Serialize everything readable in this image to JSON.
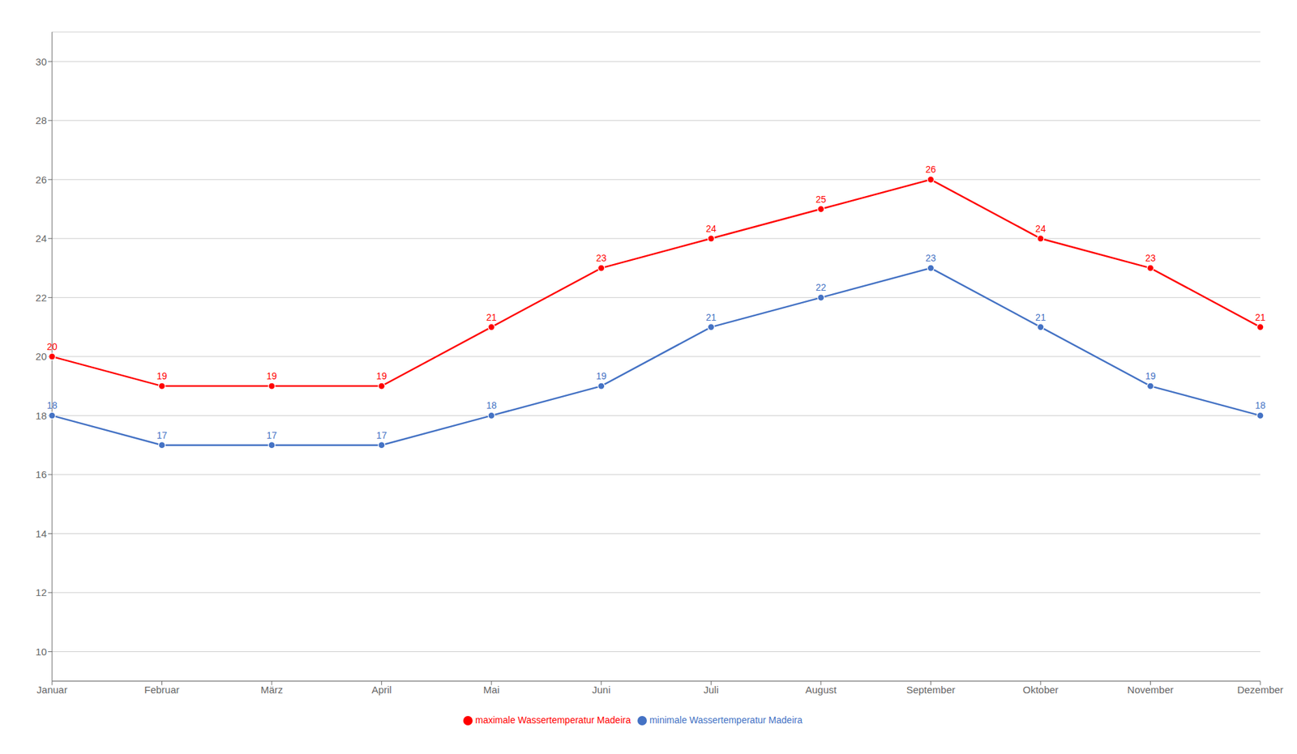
{
  "chart_data": {
    "type": "line",
    "categories": [
      "Januar",
      "Februar",
      "März",
      "April",
      "Mai",
      "Juni",
      "Juli",
      "August",
      "September",
      "Oktober",
      "November",
      "Dezember"
    ],
    "series": [
      {
        "name": "minimale Wassertemperatur Madeira",
        "color": "#4472C4",
        "values": [
          18,
          17,
          17,
          17,
          18,
          19,
          21,
          22,
          23,
          21,
          19,
          18
        ]
      },
      {
        "name": "maximale Wassertemperatur Madeira",
        "color": "#FF0000",
        "values": [
          20,
          19,
          19,
          19,
          21,
          23,
          24,
          25,
          26,
          24,
          23,
          21
        ]
      }
    ],
    "ylim": [
      9,
      31
    ],
    "yticks": [
      10,
      12,
      14,
      16,
      18,
      20,
      22,
      24,
      26,
      28,
      30
    ],
    "grid": true,
    "legend": "bottom",
    "data_labels": true,
    "marker": "circle"
  }
}
